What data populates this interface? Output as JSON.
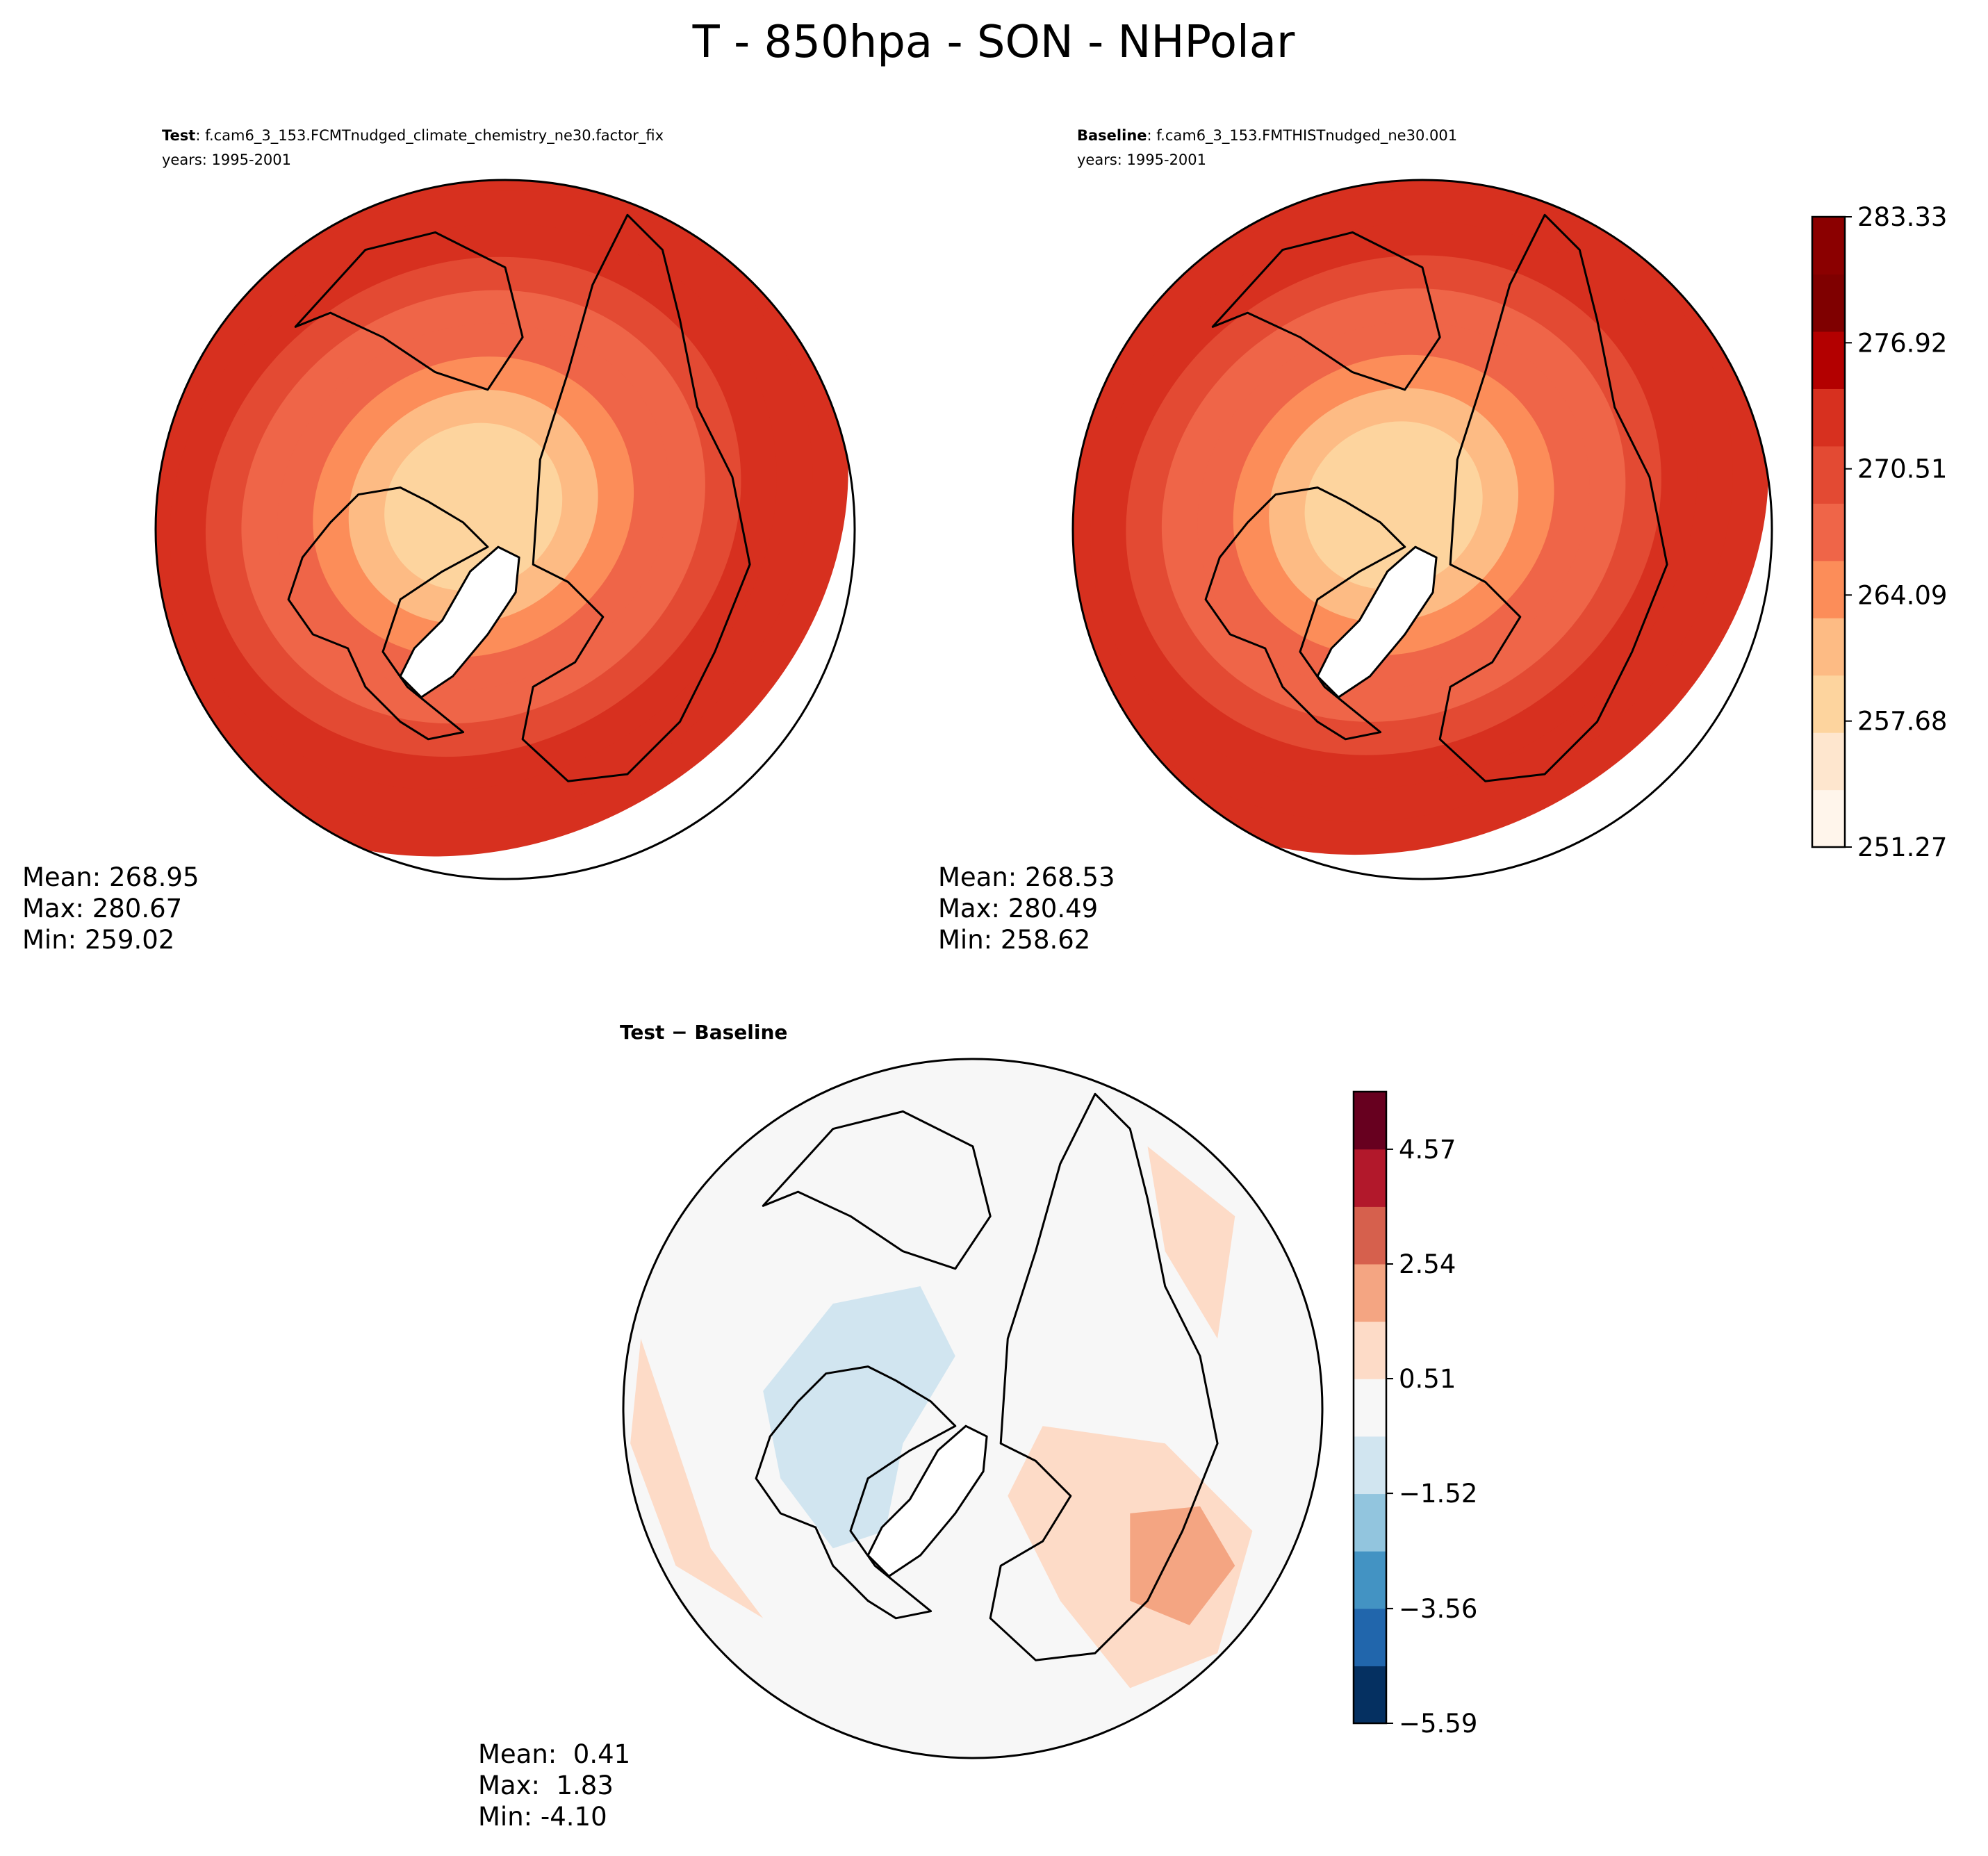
{
  "suptitle": "T - 850hpa - SON - NHPolar",
  "chart_data": [
    {
      "type": "contour-map",
      "projection": "north-polar-stereographic",
      "title_bold": "Test",
      "title_sep": ": ",
      "title_case": "f.cam6_3_153.FCMTnudged_climate_chemistry_ne30.factor_fix",
      "years": "years: 1995-2001",
      "stats": [
        "Mean: 268.95",
        "Max: 280.67",
        "Min: 259.02"
      ],
      "rings": [
        "#fdd49e",
        "#fdd49e",
        "#fdbb84",
        "#fc8d59",
        "#ef6548",
        "#ef6548",
        "#e34a33",
        "#d7301f",
        "#d7301f",
        "#d7301f"
      ],
      "ring_offset": 0.0,
      "blobs": []
    },
    {
      "type": "contour-map",
      "projection": "north-polar-stereographic",
      "title_bold": "Baseline",
      "title_sep": ": ",
      "title_case": "f.cam6_3_153.FMTHISTnudged_ne30.001",
      "years": "years: 1995-2001",
      "stats": [
        "Mean: 268.53",
        "Max: 280.49",
        "Min: 258.62"
      ],
      "rings": [
        "#fdd49e",
        "#fdd49e",
        "#fdbb84",
        "#fc8d59",
        "#ef6548",
        "#ef6548",
        "#e34a33",
        "#d7301f",
        "#d7301f",
        "#d7301f"
      ],
      "ring_offset": 0.05,
      "blobs": []
    },
    {
      "type": "contour-map",
      "projection": "north-polar-stereographic",
      "title_bold": "Test − Baseline",
      "title_sep": "",
      "title_case": "",
      "years": "",
      "stats": [
        "Mean:  0.41",
        "Max:  1.83",
        "Min: -4.10"
      ],
      "background": "#f7f7f7",
      "blobs": [
        {
          "color": "#d1e5f0",
          "kind": "canada-cold"
        },
        {
          "color": "#fddbc7",
          "kind": "siberia-warm"
        },
        {
          "color": "#fddbc7",
          "kind": "pacific-warm"
        },
        {
          "color": "#fddbc7",
          "kind": "atlantic-warm"
        },
        {
          "color": "#f4a582",
          "kind": "siberia-hot"
        }
      ]
    }
  ],
  "colorbars": [
    {
      "colors": [
        "#fff5eb",
        "#fee6ce",
        "#fdd49e",
        "#fdbb84",
        "#fc8d59",
        "#ef6548",
        "#e34a33",
        "#d7301f",
        "#b30000",
        "#7f0000",
        "#8b0000"
      ],
      "bounds": [
        251.27,
        283.33
      ],
      "tick_values": [
        251.27,
        257.68,
        264.09,
        270.51,
        276.92,
        283.33
      ],
      "tick_labels": [
        "251.27",
        "257.68",
        "264.09",
        "270.51",
        "276.92",
        "283.33"
      ]
    },
    {
      "colors": [
        "#053061",
        "#2166ac",
        "#4393c3",
        "#92c5de",
        "#d1e5f0",
        "#f7f7f7",
        "#fddbc7",
        "#f4a582",
        "#d6604d",
        "#b2182b",
        "#67001f"
      ],
      "bounds": [
        -5.59,
        5.59
      ],
      "tick_values": [
        -5.59,
        -3.56,
        -1.52,
        0.51,
        2.54,
        4.57
      ],
      "tick_labels": [
        "−5.59",
        "−3.56",
        "−1.52",
        "0.51",
        "2.54",
        "4.57"
      ]
    }
  ]
}
